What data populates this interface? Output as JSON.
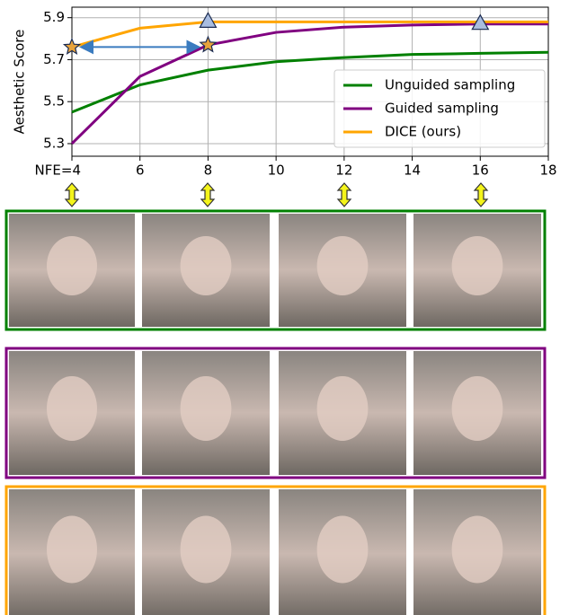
{
  "chart_data": {
    "type": "line",
    "ylabel": "Aesthetic Score",
    "x": [
      4,
      6,
      8,
      10,
      12,
      14,
      16,
      18
    ],
    "series": [
      {
        "name": "Unguided sampling",
        "color": "#008000",
        "values": [
          5.45,
          5.58,
          5.65,
          5.69,
          5.71,
          5.725,
          5.73,
          5.735
        ]
      },
      {
        "name": "Guided sampling",
        "color": "#800080",
        "values": [
          5.3,
          5.62,
          5.77,
          5.83,
          5.855,
          5.865,
          5.87,
          5.87
        ]
      },
      {
        "name": "DICE (ours)",
        "color": "#ffa500",
        "values": [
          5.76,
          5.85,
          5.88,
          5.88,
          5.88,
          5.88,
          5.88,
          5.88
        ]
      }
    ],
    "markers": [
      {
        "x": 4,
        "y": 5.76,
        "shape": "star"
      },
      {
        "x": 8,
        "y": 5.77,
        "shape": "star"
      },
      {
        "x": 8,
        "y": 5.88,
        "shape": "triangle"
      },
      {
        "x": 16,
        "y": 5.87,
        "shape": "triangle"
      }
    ],
    "xlim": [
      4,
      18
    ],
    "xticks": [
      {
        "value": 4,
        "label": "NFE=4"
      },
      6,
      8,
      10,
      12,
      14,
      16,
      18
    ],
    "ylim": [
      5.24,
      5.95
    ],
    "yticks": [
      5.3,
      5.5,
      5.7,
      5.9
    ],
    "grid": true,
    "legend": "lower right"
  }
}
